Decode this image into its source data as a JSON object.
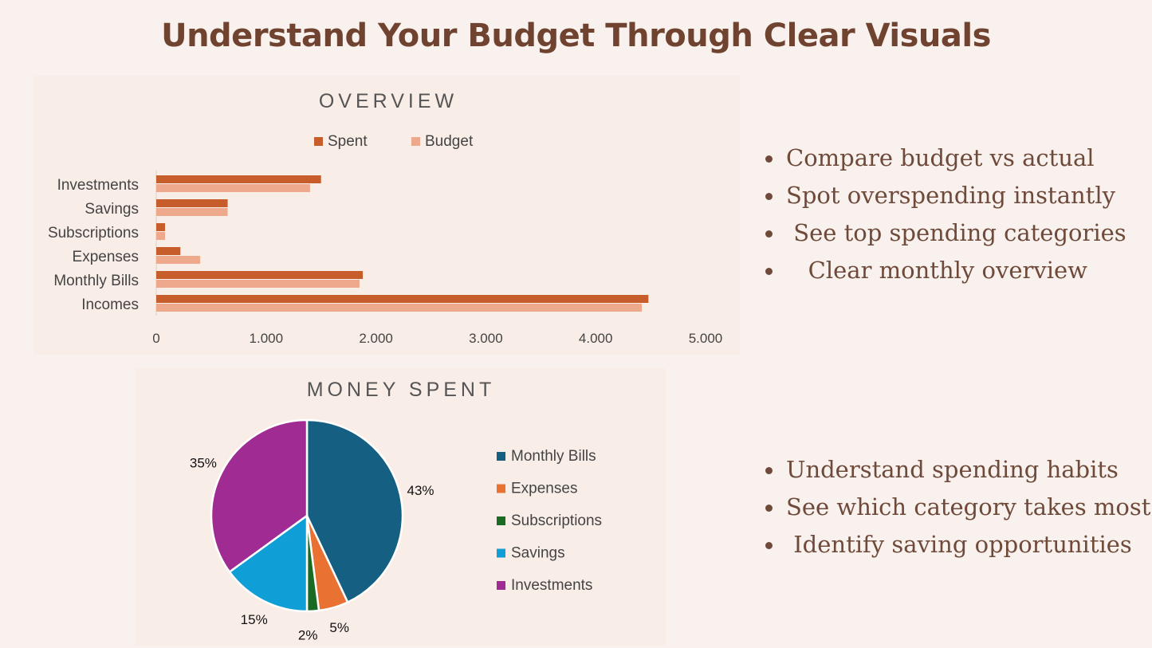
{
  "page_title": "Understand Your Budget Through Clear Visuals",
  "colors": {
    "background": "#f8f1ed",
    "panel": "#f9ede7",
    "title_brown": "#6f4330",
    "spent": "#c65d2b",
    "budget": "#eea98c"
  },
  "chart_data": [
    {
      "type": "bar",
      "orientation": "horizontal",
      "title": "OVERVIEW",
      "categories": [
        "Investments",
        "Savings",
        "Subscriptions",
        "Expenses",
        "Monthly Bills",
        "Incomes"
      ],
      "series": [
        {
          "name": "Spent",
          "color": "#c65d2b",
          "values": [
            1500,
            650,
            80,
            220,
            1880,
            4480
          ]
        },
        {
          "name": "Budget",
          "color": "#eea98c",
          "values": [
            1400,
            650,
            80,
            400,
            1850,
            4420
          ]
        }
      ],
      "x_ticks": [
        "0",
        "1.000",
        "2.000",
        "3.000",
        "4.000",
        "5.000"
      ],
      "xlim": [
        0,
        5000
      ],
      "legend_position": "top",
      "grid": false
    },
    {
      "type": "pie",
      "title": "MONEY SPENT",
      "labels": [
        "Monthly Bills",
        "Expenses",
        "Subscriptions",
        "Savings",
        "Investments"
      ],
      "values": [
        43,
        5,
        2,
        15,
        35
      ],
      "value_labels": [
        "43%",
        "5%",
        "2%",
        "15%",
        "35%"
      ],
      "colors": [
        "#156082",
        "#e97132",
        "#196b24",
        "#0f9ed5",
        "#a02b93"
      ],
      "legend_position": "right"
    }
  ],
  "bullets_top": [
    "Compare budget vs actual",
    "Spot overspending instantly",
    " See top spending categories",
    "   Clear monthly overview"
  ],
  "bullets_bottom": [
    "Understand spending habits",
    "See which category takes most",
    " Identify saving opportunities"
  ]
}
